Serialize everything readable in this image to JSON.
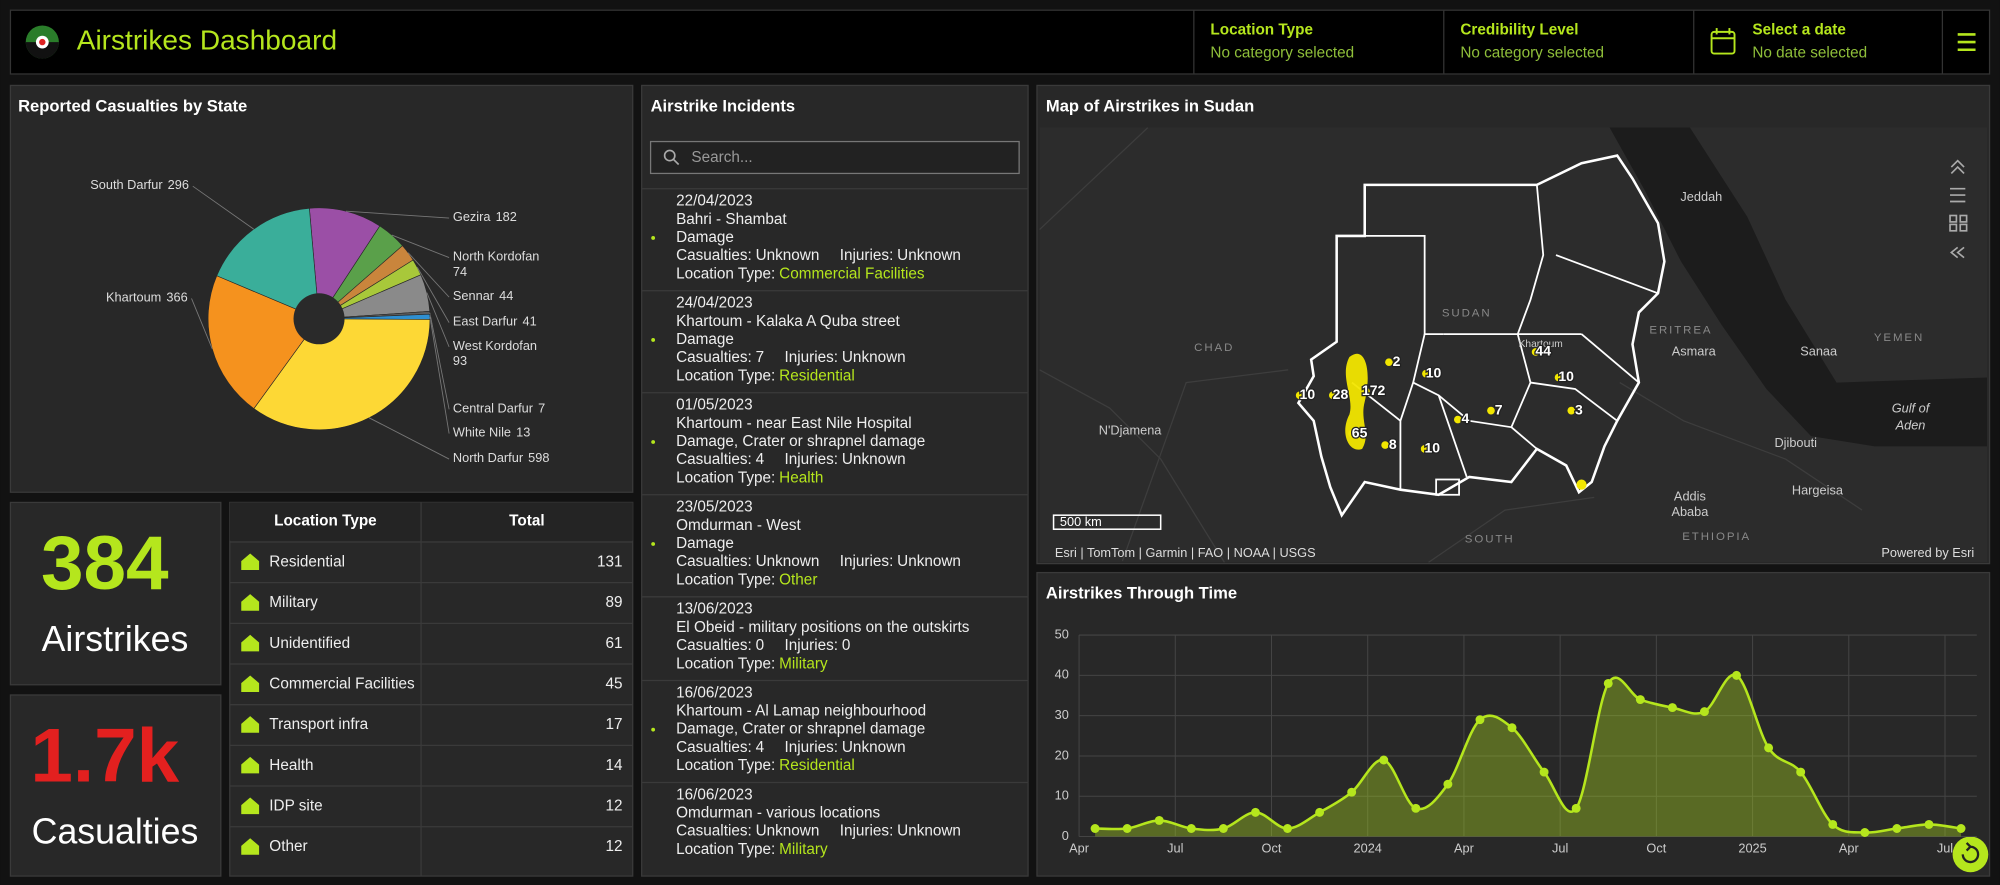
{
  "header": {
    "title": "Airstrikes Dashboard",
    "filters": [
      {
        "label": "Location Type",
        "value": "No category selected"
      },
      {
        "label": "Credibility Level",
        "value": "No category selected"
      },
      {
        "label": "Select a date",
        "value": "No date selected"
      }
    ]
  },
  "chart_data": [
    {
      "type": "pie",
      "title": "Reported Casualties by State",
      "categories": [
        "Gezira",
        "North Kordofan",
        "Sennar",
        "East Darfur",
        "West Kordofan",
        "Central Darfur",
        "White Nile",
        "North Darfur",
        "Khartoum",
        "South Darfur"
      ],
      "values": [
        182,
        74,
        44,
        41,
        93,
        7,
        13,
        598,
        366,
        296
      ],
      "colors": [
        "#9b4fa6",
        "#5aa04a",
        "#c9853c",
        "#a8c83a",
        "#8a8a8a",
        "#5c5c5c",
        "#2f8fd0",
        "#fdd835",
        "#f5921e",
        "#3aae9a"
      ]
    },
    {
      "type": "area",
      "title": "Airstrikes Through Time",
      "x": [
        "2023-04",
        "2023-05",
        "2023-06",
        "2023-07",
        "2023-08",
        "2023-09",
        "2023-10",
        "2023-11",
        "2023-12",
        "2024-01",
        "2024-02",
        "2024-03",
        "2024-04",
        "2024-05",
        "2024-06",
        "2024-07",
        "2024-08",
        "2024-09",
        "2024-10",
        "2024-11",
        "2024-12",
        "2025-01",
        "2025-02",
        "2025-03",
        "2025-04",
        "2025-05",
        "2025-06",
        "2025-07"
      ],
      "color": "#b5e61d",
      "values": [
        2,
        2,
        4,
        2,
        2,
        6,
        2,
        6,
        11,
        19,
        7,
        13,
        29,
        27,
        16,
        7,
        38,
        34,
        32,
        31,
        40,
        22,
        16,
        3,
        1,
        2,
        3,
        2
      ],
      "ylim": [
        0,
        50
      ],
      "yticks": [
        0,
        10,
        20,
        30,
        40,
        50
      ],
      "xticks": [
        {
          "value": "2023-04",
          "label": "Apr"
        },
        {
          "value": "2023-07",
          "label": "Jul"
        },
        {
          "value": "2023-10",
          "label": "Oct"
        },
        {
          "value": "2024-01",
          "label": "2024"
        },
        {
          "value": "2024-04",
          "label": "Apr"
        },
        {
          "value": "2024-07",
          "label": "Jul"
        },
        {
          "value": "2024-10",
          "label": "Oct"
        },
        {
          "value": "2025-01",
          "label": "2025"
        },
        {
          "value": "2025-04",
          "label": "Apr"
        },
        {
          "value": "2025-07",
          "label": "Jul"
        }
      ],
      "grid": true
    }
  ],
  "indicators": [
    {
      "value": 384,
      "label": "Airstrikes",
      "color": "#b5e61d"
    },
    {
      "value": "1.7k",
      "label": "Casualties",
      "color": "#e3201f"
    }
  ],
  "table": {
    "columns": [
      "Location Type",
      "Total"
    ],
    "rows": [
      [
        "Residential",
        131
      ],
      [
        "Military",
        89
      ],
      [
        "Unidentified",
        61
      ],
      [
        "Commercial Facilities",
        45
      ],
      [
        "Transport infra",
        17
      ],
      [
        "Health",
        14
      ],
      [
        "IDP site",
        12
      ],
      [
        "Other",
        12
      ]
    ]
  },
  "incidents": {
    "title": "Airstrike Incidents",
    "search_placeholder": "Search...",
    "labels": {
      "casualties": "Casualties:",
      "injuries": "Injuries:",
      "location_type": "Location Type:"
    },
    "items": [
      {
        "date": "22/04/2023",
        "title": "Bahri - Shambat",
        "damage": "Damage",
        "casualties": "Unknown",
        "injuries": "Unknown",
        "location_type": "Commercial Facilities"
      },
      {
        "date": "24/04/2023",
        "title": "Khartoum - Kalaka A Quba street",
        "damage": "Damage",
        "casualties": "7",
        "injuries": "Unknown",
        "location_type": "Residential"
      },
      {
        "date": "01/05/2023",
        "title": "Khartoum - near East Nile Hospital",
        "damage": "Damage, Crater or shrapnel damage",
        "casualties": "4",
        "injuries": "Unknown",
        "location_type": "Health"
      },
      {
        "date": "23/05/2023",
        "title": "Omdurman - West",
        "damage": "Damage",
        "casualties": "Unknown",
        "injuries": "Unknown",
        "location_type": "Other"
      },
      {
        "date": "13/06/2023",
        "title": "El Obeid - military positions on the outskirts",
        "casualties": "0",
        "injuries": "0",
        "location_type": "Military"
      },
      {
        "date": "16/06/2023",
        "title": "Khartoum - Al Lamap neighbourhood",
        "damage": "Damage, Crater or shrapnel damage",
        "casualties": "4",
        "injuries": "Unknown",
        "location_type": "Residential"
      },
      {
        "date": "16/06/2023",
        "title": "Omdurman - various locations",
        "casualties": "Unknown",
        "injuries": "Unknown",
        "location_type": "Military"
      }
    ]
  },
  "map": {
    "title": "Map of Airstrikes in Sudan",
    "places": [
      "Jeddah",
      "SUDAN",
      "CHAD",
      "ERITREA",
      "Asmara",
      "Sanaa",
      "YEMEN",
      "N'Djamena",
      "Gulf of",
      "Aden",
      "Djibouti",
      "Addis",
      "Ababa",
      "Hargeisa",
      "ETHIOPIA",
      "SOUTH",
      "Khartoum"
    ],
    "clusters": [
      2,
      10,
      172,
      28,
      10,
      65,
      8,
      10,
      7,
      4,
      44,
      10,
      3
    ],
    "scale": "500 km",
    "attribution": "Esri | TomTom | Garmin | FAO | NOAA | USGS",
    "powered_by": "Powered by Esri"
  }
}
